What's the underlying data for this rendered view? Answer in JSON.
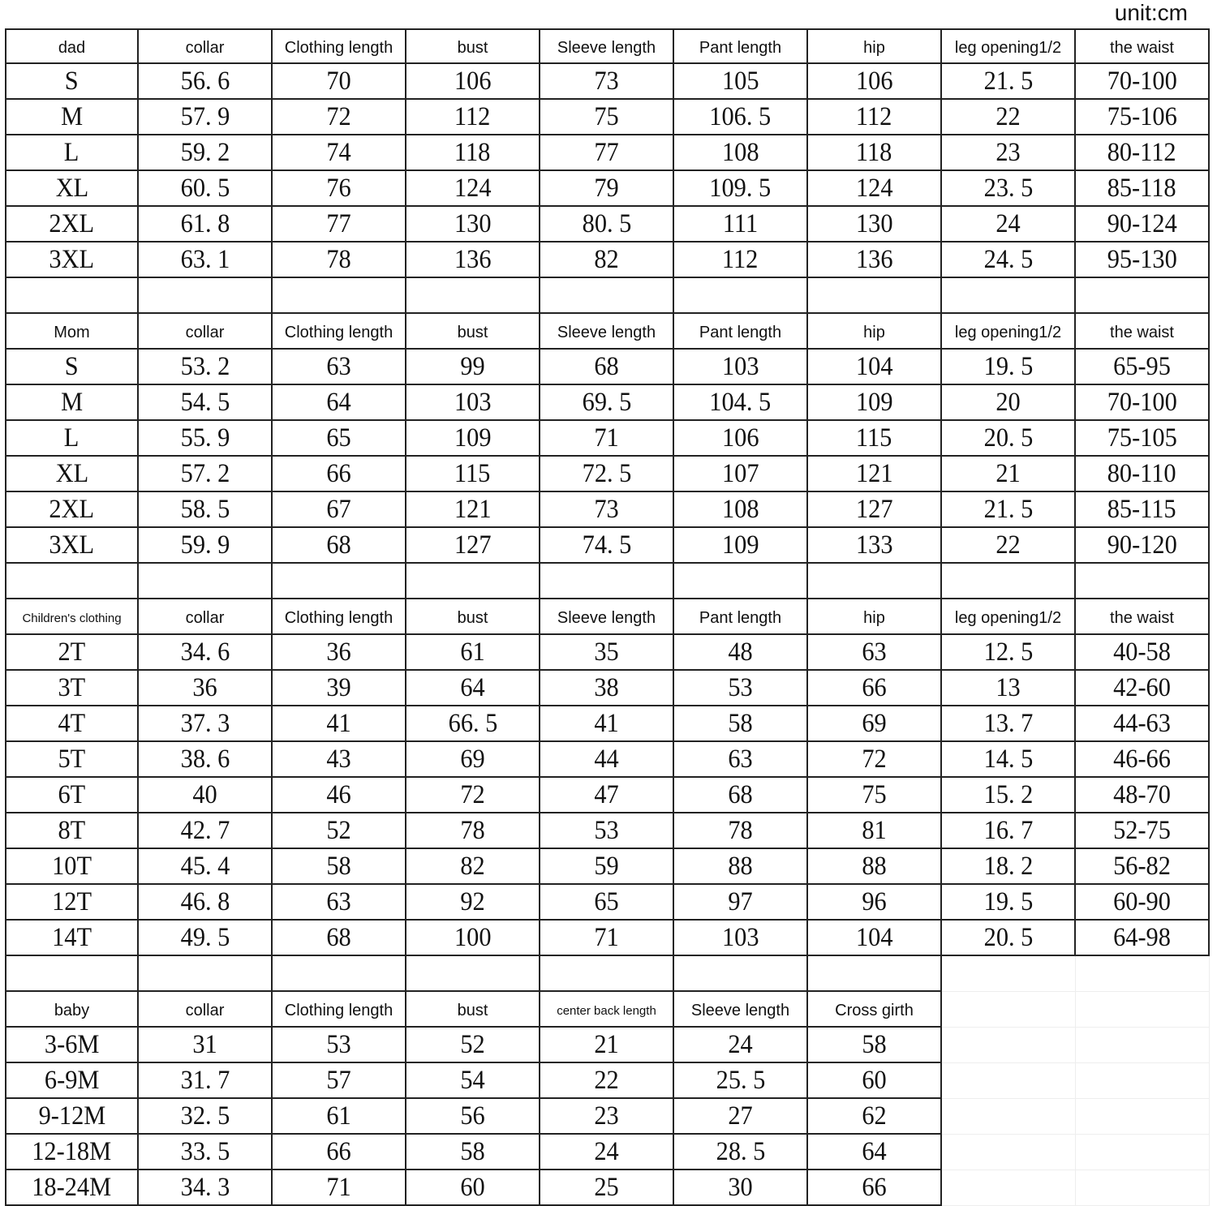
{
  "unit_label": "unit:cm",
  "sections": [
    {
      "headers": [
        "dad",
        "collar",
        "Clothing length",
        "bust",
        "Sleeve length",
        "Pant length",
        "hip",
        "leg opening1/2",
        "the waist"
      ],
      "rows": [
        [
          "S",
          "56. 6",
          "70",
          "106",
          "73",
          "105",
          "106",
          "21. 5",
          "70-100"
        ],
        [
          "M",
          "57. 9",
          "72",
          "112",
          "75",
          "106. 5",
          "112",
          "22",
          "75-106"
        ],
        [
          "L",
          "59. 2",
          "74",
          "118",
          "77",
          "108",
          "118",
          "23",
          "80-112"
        ],
        [
          "XL",
          "60. 5",
          "76",
          "124",
          "79",
          "109. 5",
          "124",
          "23. 5",
          "85-118"
        ],
        [
          "2XL",
          "61. 8",
          "77",
          "130",
          "80. 5",
          "111",
          "130",
          "24",
          "90-124"
        ],
        [
          "3XL",
          "63. 1",
          "78",
          "136",
          "82",
          "112",
          "136",
          "24. 5",
          "95-130"
        ]
      ]
    },
    {
      "headers": [
        "Mom",
        "collar",
        "Clothing length",
        "bust",
        "Sleeve length",
        "Pant length",
        "hip",
        "leg opening1/2",
        "the waist"
      ],
      "rows": [
        [
          "S",
          "53. 2",
          "63",
          "99",
          "68",
          "103",
          "104",
          "19. 5",
          "65-95"
        ],
        [
          "M",
          "54. 5",
          "64",
          "103",
          "69. 5",
          "104. 5",
          "109",
          "20",
          "70-100"
        ],
        [
          "L",
          "55. 9",
          "65",
          "109",
          "71",
          "106",
          "115",
          "20. 5",
          "75-105"
        ],
        [
          "XL",
          "57. 2",
          "66",
          "115",
          "72. 5",
          "107",
          "121",
          "21",
          "80-110"
        ],
        [
          "2XL",
          "58. 5",
          "67",
          "121",
          "73",
          "108",
          "127",
          "21. 5",
          "85-115"
        ],
        [
          "3XL",
          "59. 9",
          "68",
          "127",
          "74. 5",
          "109",
          "133",
          "22",
          "90-120"
        ]
      ]
    },
    {
      "headers": [
        "Children's clothing",
        "collar",
        "Clothing length",
        "bust",
        "Sleeve length",
        "Pant length",
        "hip",
        "leg opening1/2",
        "the waist"
      ],
      "rows": [
        [
          "2T",
          "34. 6",
          "36",
          "61",
          "35",
          "48",
          "63",
          "12. 5",
          "40-58"
        ],
        [
          "3T",
          "36",
          "39",
          "64",
          "38",
          "53",
          "66",
          "13",
          "42-60"
        ],
        [
          "4T",
          "37. 3",
          "41",
          "66. 5",
          "41",
          "58",
          "69",
          "13. 7",
          "44-63"
        ],
        [
          "5T",
          "38. 6",
          "43",
          "69",
          "44",
          "63",
          "72",
          "14. 5",
          "46-66"
        ],
        [
          "6T",
          "40",
          "46",
          "72",
          "47",
          "68",
          "75",
          "15. 2",
          "48-70"
        ],
        [
          "8T",
          "42. 7",
          "52",
          "78",
          "53",
          "78",
          "81",
          "16. 7",
          "52-75"
        ],
        [
          "10T",
          "45. 4",
          "58",
          "82",
          "59",
          "88",
          "88",
          "18. 2",
          "56-82"
        ],
        [
          "12T",
          "46. 8",
          "63",
          "92",
          "65",
          "97",
          "96",
          "19. 5",
          "60-90"
        ],
        [
          "14T",
          "49. 5",
          "68",
          "100",
          "71",
          "103",
          "104",
          "20. 5",
          "64-98"
        ]
      ]
    },
    {
      "headers": [
        "baby",
        "collar",
        "Clothing length",
        "bust",
        "center back length",
        "Sleeve length",
        "Cross girth"
      ],
      "rows": [
        [
          "3-6M",
          "31",
          "53",
          "52",
          "21",
          "24",
          "58"
        ],
        [
          "6-9M",
          "31. 7",
          "57",
          "54",
          "22",
          "25. 5",
          "60"
        ],
        [
          "9-12M",
          "32. 5",
          "61",
          "56",
          "23",
          "27",
          "62"
        ],
        [
          "12-18M",
          "33. 5",
          "66",
          "58",
          "24",
          "28. 5",
          "64"
        ],
        [
          "18-24M",
          "34. 3",
          "71",
          "60",
          "25",
          "30",
          "66"
        ]
      ]
    }
  ]
}
